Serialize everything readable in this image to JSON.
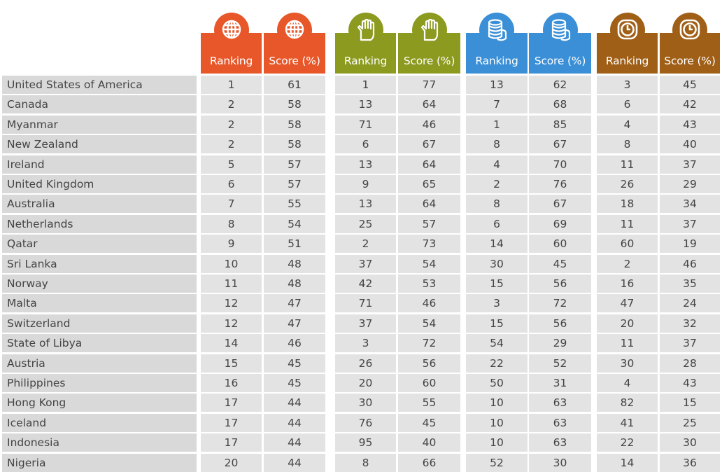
{
  "chart_data": {
    "type": "table",
    "groups": [
      {
        "icon": "globe-icon",
        "color": "#e8572a",
        "columns": [
          "Ranking",
          "Score (%)"
        ]
      },
      {
        "icon": "raised-hand-icon",
        "color": "#8c9b1f",
        "columns": [
          "Ranking",
          "Score (%)"
        ]
      },
      {
        "icon": "coins-icon",
        "color": "#3a8fd6",
        "columns": [
          "Ranking",
          "Score (%)"
        ]
      },
      {
        "icon": "clock-icon",
        "color": "#a05f16",
        "columns": [
          "Ranking",
          "Score (%)"
        ]
      }
    ],
    "rows": [
      {
        "country": "United States of America",
        "values": [
          "1",
          "61",
          "1",
          "77",
          "13",
          "62",
          "3",
          "45"
        ]
      },
      {
        "country": "Canada",
        "values": [
          "2",
          "58",
          "13",
          "64",
          "7",
          "68",
          "6",
          "42"
        ]
      },
      {
        "country": "Myanmar",
        "values": [
          "2",
          "58",
          "71",
          "46",
          "1",
          "85",
          "4",
          "43"
        ]
      },
      {
        "country": "New Zealand",
        "values": [
          "2",
          "58",
          "6",
          "67",
          "8",
          "67",
          "8",
          "40"
        ]
      },
      {
        "country": "Ireland",
        "values": [
          "5",
          "57",
          "13",
          "64",
          "4",
          "70",
          "11",
          "37"
        ]
      },
      {
        "country": "United Kingdom",
        "values": [
          "6",
          "57",
          "9",
          "65",
          "2",
          "76",
          "26",
          "29"
        ]
      },
      {
        "country": "Australia",
        "values": [
          "7",
          "55",
          "13",
          "64",
          "8",
          "67",
          "18",
          "34"
        ]
      },
      {
        "country": "Netherlands",
        "values": [
          "8",
          "54",
          "25",
          "57",
          "6",
          "69",
          "11",
          "37"
        ]
      },
      {
        "country": "Qatar",
        "values": [
          "9",
          "51",
          "2",
          "73",
          "14",
          "60",
          "60",
          "19"
        ]
      },
      {
        "country": "Sri Lanka",
        "values": [
          "10",
          "48",
          "37",
          "54",
          "30",
          "45",
          "2",
          "46"
        ]
      },
      {
        "country": "Norway",
        "values": [
          "11",
          "48",
          "42",
          "53",
          "15",
          "56",
          "16",
          "35"
        ]
      },
      {
        "country": "Malta",
        "values": [
          "12",
          "47",
          "71",
          "46",
          "3",
          "72",
          "47",
          "24"
        ]
      },
      {
        "country": "Switzerland",
        "values": [
          "12",
          "47",
          "37",
          "54",
          "15",
          "56",
          "20",
          "32"
        ]
      },
      {
        "country": "State of Libya",
        "values": [
          "14",
          "46",
          "3",
          "72",
          "54",
          "29",
          "11",
          "37"
        ]
      },
      {
        "country": "Austria",
        "values": [
          "15",
          "45",
          "26",
          "56",
          "22",
          "52",
          "30",
          "28"
        ]
      },
      {
        "country": "Philippines",
        "values": [
          "16",
          "45",
          "20",
          "60",
          "50",
          "31",
          "4",
          "43"
        ]
      },
      {
        "country": "Hong Kong",
        "values": [
          "17",
          "44",
          "30",
          "55",
          "10",
          "63",
          "82",
          "15"
        ]
      },
      {
        "country": "Iceland",
        "values": [
          "17",
          "44",
          "76",
          "45",
          "10",
          "63",
          "41",
          "25"
        ]
      },
      {
        "country": "Indonesia",
        "values": [
          "17",
          "44",
          "95",
          "40",
          "10",
          "63",
          "22",
          "30"
        ]
      },
      {
        "country": "Nigeria",
        "values": [
          "20",
          "44",
          "8",
          "66",
          "52",
          "30",
          "14",
          "36"
        ]
      }
    ]
  }
}
